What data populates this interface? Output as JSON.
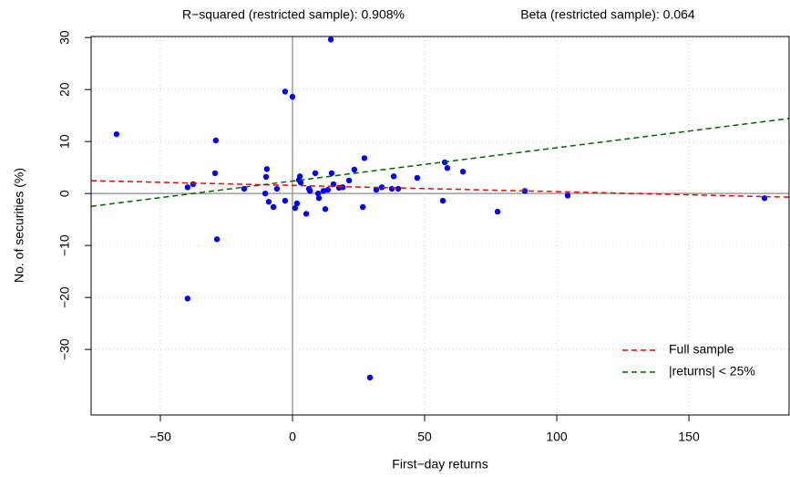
{
  "chart_data": {
    "type": "scatter",
    "annotations": [
      "R−squared (restricted sample): 0.908%",
      "Beta (restricted sample): 0.064"
    ],
    "x_label": "First−day returns",
    "y_label": "No. of securities (%)",
    "xlim": [
      -76.2,
      187.9
    ],
    "ylim": [
      -42.6,
      30.2
    ],
    "xticks": [
      {
        "value": -50,
        "label": "−50"
      },
      0,
      50,
      100,
      150
    ],
    "yticks": [
      {
        "value": -30,
        "label": "−30"
      },
      {
        "value": -20,
        "label": "−20"
      },
      {
        "value": -10,
        "label": "−10"
      },
      0,
      10,
      20,
      30
    ],
    "grid": true,
    "vline": 0,
    "hline": 0,
    "legend": "bottom-right",
    "points": {
      "color": "#0000ff",
      "x": [
        -66.6,
        -29.0,
        -29.3,
        -28.6,
        -39.7,
        -37.6,
        -39.7,
        -18.3,
        -9.7,
        -10.0,
        -10.3,
        -9.0,
        -7.2,
        -5.9,
        -2.8,
        -2.8,
        0,
        1.0,
        1.7,
        2.4,
        2.8,
        3.1,
        5.2,
        6.2,
        6.6,
        8.6,
        9.7,
        10.0,
        11.7,
        12.4,
        13.4,
        14.8,
        14.5,
        15.5,
        17.6,
        19.0,
        21.4,
        23.4,
        26.6,
        27.2,
        29.3,
        31.7,
        33.8,
        37.6,
        38.3,
        40.0,
        47.2,
        56.9,
        57.6,
        58.6,
        64.5,
        77.6,
        87.9,
        104.1,
        178.6
      ],
      "y": [
        11.4,
        10.2,
        3.9,
        -8.8,
        1.2,
        1.8,
        -20.2,
        0.9,
        4.7,
        3.2,
        0,
        -1.6,
        -2.6,
        0.9,
        -1.4,
        19.6,
        18.6,
        -2.8,
        -1.9,
        2.6,
        3.3,
        2.1,
        -3.9,
        0.9,
        0.5,
        3.9,
        0,
        -0.9,
        0.5,
        -3.0,
        0.7,
        3.9,
        29.6,
        1.8,
        1.1,
        1.2,
        2.5,
        4.6,
        -2.6,
        6.8,
        -35.4,
        0.7,
        1.2,
        0.9,
        3.3,
        0.9,
        3.0,
        -1.4,
        6.0,
        4.9,
        4.2,
        -3.5,
        0.5,
        -0.4,
        -0.9
      ]
    },
    "lines": [
      {
        "name": "Full sample",
        "color": "#ff0000",
        "intercept": 1.55,
        "slope": -0.012
      },
      {
        "name": "|returns| < 25%",
        "color": "#006400",
        "intercept": 2.4,
        "slope": 0.064
      }
    ]
  }
}
